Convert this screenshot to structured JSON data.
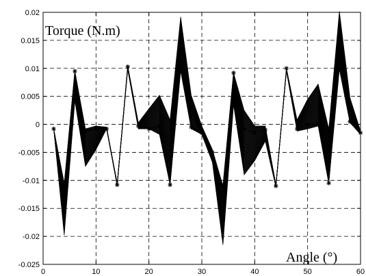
{
  "chart_data": {
    "type": "line",
    "xlabel": "Angle (°)",
    "ylabel": "Torque (N.m)",
    "xlim": [
      0,
      60
    ],
    "ylim": [
      -0.025,
      0.02
    ],
    "x_ticks": [
      0,
      10,
      20,
      30,
      40,
      50,
      60
    ],
    "y_ticks": [
      -0.025,
      -0.02,
      -0.015,
      -0.01,
      -0.005,
      0,
      0.005,
      0.01,
      0.015,
      0.02
    ],
    "x_tick_labels": [
      "0",
      "10",
      "20",
      "30",
      "40",
      "50",
      "60"
    ],
    "y_tick_labels": [
      "-0.025",
      "-0.02",
      "-0.015",
      "-0.01",
      "-0.005",
      "0",
      "0.005",
      "0.01",
      "0.015",
      "0.02"
    ],
    "grid": true,
    "x": [
      2,
      4,
      6,
      8,
      10,
      12,
      14,
      16,
      18,
      20,
      22,
      24,
      26,
      28,
      30,
      32,
      34,
      36,
      38,
      40,
      42,
      44,
      46,
      48,
      50,
      52,
      54,
      56,
      58,
      60
    ],
    "envelope_upper": [
      -0.0008,
      -0.0105,
      0.0095,
      -0.0008,
      -0.0003,
      -0.0005,
      -0.0105,
      0.0105,
      0.0003,
      0.0028,
      0.0052,
      0.0008,
      0.0192,
      0.0052,
      -0.0003,
      -0.0045,
      -0.011,
      0.0092,
      0.0025,
      -0.0003,
      -0.0003,
      -0.0108,
      0.01,
      0.0008,
      0.0045,
      0.0072,
      -0.0008,
      0.0202,
      0.0048,
      -0.0012
    ],
    "envelope_lower": [
      -0.0008,
      -0.0198,
      0.0042,
      -0.0075,
      -0.0045,
      -0.0008,
      -0.011,
      0.0098,
      -0.0008,
      -0.0008,
      -0.0018,
      -0.0108,
      0.0095,
      -0.0008,
      -0.0018,
      -0.0068,
      -0.0215,
      0.0035,
      -0.009,
      -0.0065,
      -0.003,
      -0.0112,
      0.0095,
      -0.0012,
      -0.0008,
      -0.0003,
      -0.0105,
      0.0098,
      0.0003,
      -0.0018
    ],
    "marked_series": {
      "name": "",
      "values": [
        -0.0008,
        -0.011,
        0.0095,
        -0.0012,
        -0.0008,
        -0.0008,
        -0.0108,
        0.0103,
        -0.0003,
        -0.0008,
        -0.0003,
        -0.0108,
        0.0115,
        -0.0005,
        -0.0015,
        -0.005,
        -0.011,
        0.0092,
        -0.0008,
        -0.0015,
        -0.001,
        -0.011,
        0.01,
        -0.0008,
        0.0,
        0.0,
        -0.0105,
        0.0115,
        0.0005,
        -0.0015
      ]
    },
    "band_series_count": 20
  }
}
